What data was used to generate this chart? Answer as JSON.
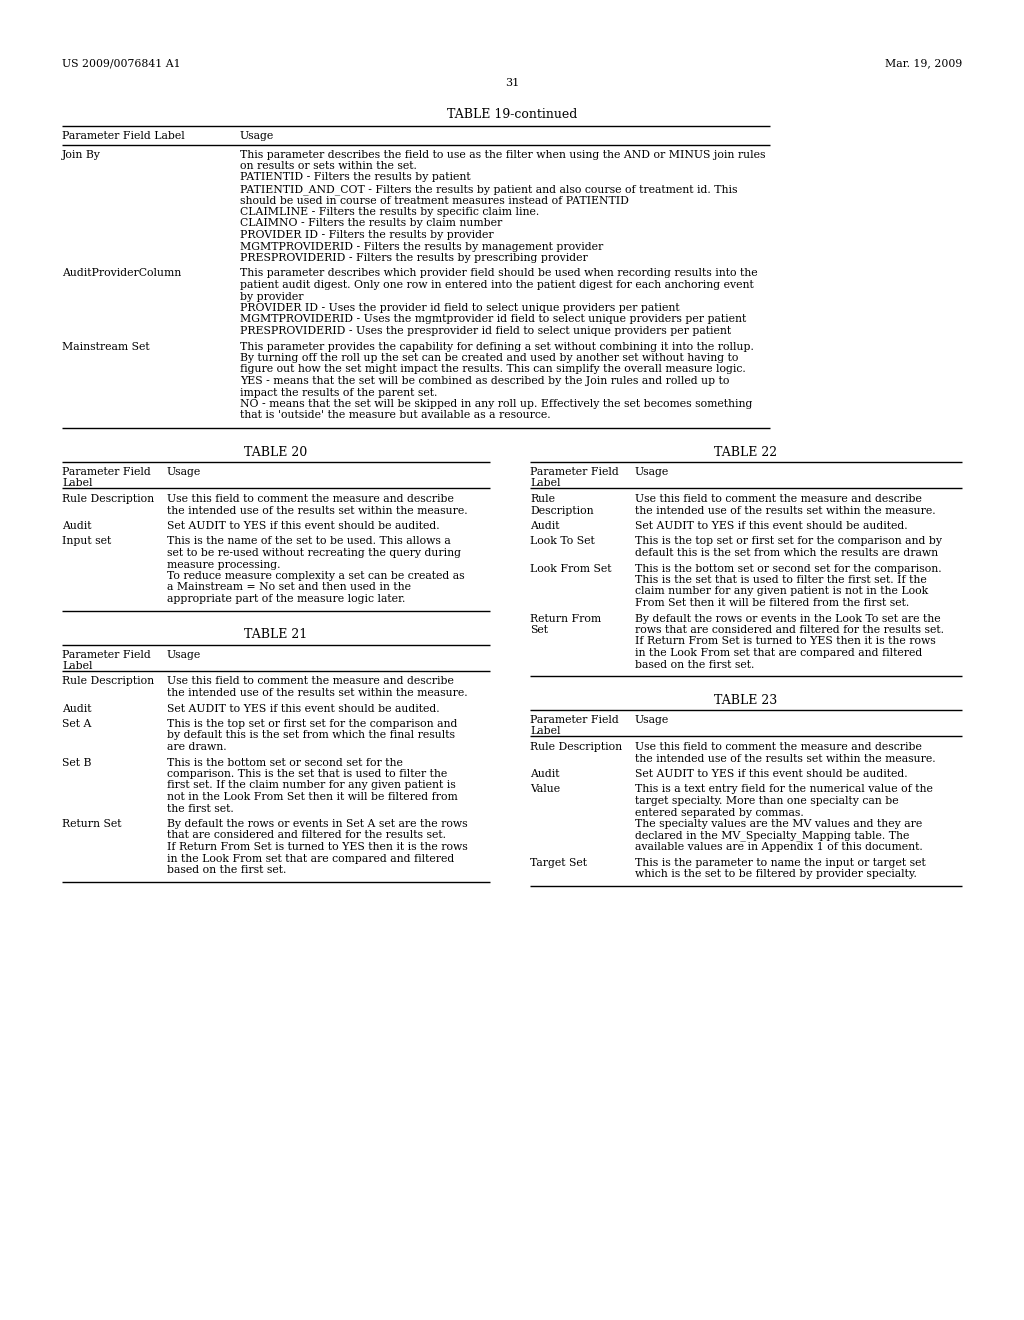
{
  "header_left": "US 2009/0076841 A1",
  "header_right": "Mar. 19, 2009",
  "page_number": "31",
  "background": "#ffffff",
  "table19_continued": {
    "title": "TABLE 19-continued",
    "col1_header": "Parameter Field Label",
    "col2_header": "Usage",
    "rows": [
      {
        "label": "Join By",
        "usage_lines": [
          "This parameter describes the field to use as the filter when using the AND or MINUS join rules",
          "on results or sets within the set.",
          "PATIENTID - Filters the results by patient",
          "PATIENTID_AND_COT - Filters the results by patient and also course of treatment id. This",
          "should be used in course of treatment measures instead of PATIENTID",
          "CLAIMLINE - Filters the results by specific claim line.",
          "CLAIMNO - Filters the results by claim number",
          "PROVIDER ID - Filters the results by provider",
          "MGMTPROVIDERID - Filters the results by management provider",
          "PRESPROVIDERID - Filters the results by prescribing provider"
        ]
      },
      {
        "label": "AuditProviderColumn",
        "usage_lines": [
          "This parameter describes which provider field should be used when recording results into the",
          "patient audit digest. Only one row in entered into the patient digest for each anchoring event",
          "by provider",
          "PROVIDER ID - Uses the provider id field to select unique providers per patient",
          "MGMTPROVIDERID - Uses the mgmtprovider id field to select unique providers per patient",
          "PRESPROVIDERID - Uses the presprovider id field to select unique providers per patient"
        ]
      },
      {
        "label": "Mainstream Set",
        "usage_lines": [
          "This parameter provides the capability for defining a set without combining it into the rollup.",
          "By turning off the roll up the set can be created and used by another set without having to",
          "figure out how the set might impact the results. This can simplify the overall measure logic.",
          "YES - means that the set will be combined as described by the Join rules and rolled up to",
          "impact the results of the parent set.",
          "NO - means that the set will be skipped in any roll up. Effectively the set becomes something",
          "that is 'outside' the measure but available as a resource."
        ]
      }
    ]
  },
  "table20": {
    "title": "TABLE 20",
    "rows": [
      {
        "label": "Rule Description",
        "usage_lines": [
          "Use this field to comment the measure and describe",
          "the intended use of the results set within the measure."
        ]
      },
      {
        "label": "Audit",
        "usage_lines": [
          "Set AUDIT to YES if this event should be audited."
        ]
      },
      {
        "label": "Input set",
        "usage_lines": [
          "This is the name of the set to be used. This allows a",
          "set to be re-used without recreating the query during",
          "measure processing.",
          "To reduce measure complexity a set can be created as",
          "a Mainstream = No set and then used in the",
          "appropriate part of the measure logic later."
        ]
      }
    ]
  },
  "table21": {
    "title": "TABLE 21",
    "rows": [
      {
        "label": "Rule Description",
        "usage_lines": [
          "Use this field to comment the measure and describe",
          "the intended use of the results set within the measure."
        ]
      },
      {
        "label": "Audit",
        "usage_lines": [
          "Set AUDIT to YES if this event should be audited."
        ]
      },
      {
        "label": "Set A",
        "usage_lines": [
          "This is the top set or first set for the comparison and",
          "by default this is the set from which the final results",
          "are drawn."
        ]
      },
      {
        "label": "Set B",
        "usage_lines": [
          "This is the bottom set or second set for the",
          "comparison. This is the set that is used to filter the",
          "first set. If the claim number for any given patient is",
          "not in the Look From Set then it will be filtered from",
          "the first set."
        ]
      },
      {
        "label": "Return Set",
        "usage_lines": [
          "By default the rows or events in Set A set are the rows",
          "that are considered and filtered for the results set.",
          "If Return From Set is turned to YES then it is the rows",
          "in the Look From set that are compared and filtered",
          "based on the first set."
        ]
      }
    ]
  },
  "table22": {
    "title": "TABLE 22",
    "rows": [
      {
        "label": "Rule\nDescription",
        "usage_lines": [
          "Use this field to comment the measure and describe",
          "the intended use of the results set within the measure."
        ]
      },
      {
        "label": "Audit",
        "usage_lines": [
          "Set AUDIT to YES if this event should be audited."
        ]
      },
      {
        "label": "Look To Set",
        "usage_lines": [
          "This is the top set or first set for the comparison and by",
          "default this is the set from which the results are drawn"
        ]
      },
      {
        "label": "Look From Set",
        "usage_lines": [
          "This is the bottom set or second set for the comparison.",
          "This is the set that is used to filter the first set. If the",
          "claim number for any given patient is not in the Look",
          "From Set then it will be filtered from the first set."
        ]
      },
      {
        "label": "Return From\nSet",
        "usage_lines": [
          "By default the rows or events in the Look To set are the",
          "rows that are considered and filtered for the results set.",
          "If Return From Set is turned to YES then it is the rows",
          "in the Look From set that are compared and filtered",
          "based on the first set."
        ]
      }
    ]
  },
  "table23": {
    "title": "TABLE 23",
    "rows": [
      {
        "label": "Rule Description",
        "usage_lines": [
          "Use this field to comment the measure and describe",
          "the intended use of the results set within the measure."
        ]
      },
      {
        "label": "Audit",
        "usage_lines": [
          "Set AUDIT to YES if this event should be audited."
        ]
      },
      {
        "label": "Value",
        "usage_lines": [
          "This is a text entry field for the numerical value of the",
          "target specialty. More than one specialty can be",
          "entered separated by commas.",
          "The specialty values are the MV values and they are",
          "declared in the MV_Specialty_Mapping table. The",
          "available values are in Appendix 1 of this document."
        ]
      },
      {
        "label": "Target Set",
        "usage_lines": [
          "This is the parameter to name the input or target set",
          "which is the set to be filtered by provider specialty."
        ]
      }
    ]
  }
}
